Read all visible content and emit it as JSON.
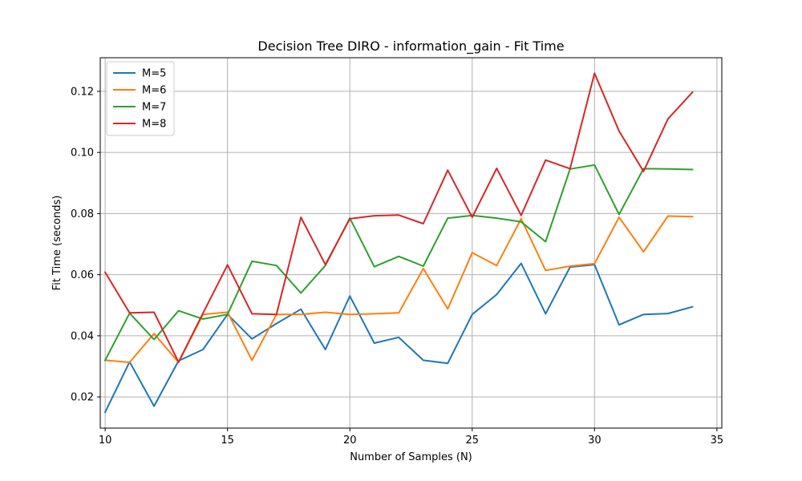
{
  "chart_data": {
    "type": "line",
    "title": "Decision Tree DIRO - information_gain - Fit Time",
    "xlabel": "Number of Samples (N)",
    "ylabel": "Fit Time (seconds)",
    "xlim": [
      9.8,
      35.2
    ],
    "ylim": [
      0.0098,
      0.131
    ],
    "xticks": [
      10,
      15,
      20,
      25,
      30,
      35
    ],
    "yticks": [
      0.02,
      0.04,
      0.06,
      0.08,
      0.1,
      0.12
    ],
    "ytick_labels": [
      "0.02",
      "0.04",
      "0.06",
      "0.08",
      "0.10",
      "0.12"
    ],
    "grid": true,
    "legend_position": "top-left",
    "x": [
      10,
      11,
      12,
      13,
      14,
      15,
      16,
      17,
      18,
      19,
      20,
      21,
      22,
      23,
      24,
      25,
      26,
      27,
      28,
      29,
      30,
      31,
      32,
      33,
      34
    ],
    "series": [
      {
        "name": "M=5",
        "color": "#1f77b4",
        "values": [
          0.015,
          0.0315,
          0.017,
          0.0318,
          0.0355,
          0.047,
          0.039,
          0.044,
          0.0487,
          0.0355,
          0.053,
          0.0376,
          0.0395,
          0.032,
          0.031,
          0.047,
          0.0535,
          0.0637,
          0.0472,
          0.0625,
          0.0633,
          0.0436,
          0.047,
          0.0473,
          0.0495
        ]
      },
      {
        "name": "M=6",
        "color": "#ff7f0e",
        "values": [
          0.032,
          0.0313,
          0.0407,
          0.0313,
          0.047,
          0.0477,
          0.032,
          0.047,
          0.047,
          0.0477,
          0.047,
          0.0472,
          0.0475,
          0.062,
          0.0488,
          0.0672,
          0.063,
          0.0783,
          0.0614,
          0.0628,
          0.0636,
          0.0788,
          0.0675,
          0.0792,
          0.079
        ]
      },
      {
        "name": "M=7",
        "color": "#2ca02c",
        "values": [
          0.032,
          0.0474,
          0.0388,
          0.0482,
          0.0455,
          0.047,
          0.0644,
          0.063,
          0.054,
          0.063,
          0.0785,
          0.0626,
          0.066,
          0.0628,
          0.0785,
          0.0794,
          0.0785,
          0.0773,
          0.0708,
          0.0946,
          0.0959,
          0.0797,
          0.0947,
          0.0946,
          0.0944
        ]
      },
      {
        "name": "M=8",
        "color": "#d62728",
        "values": [
          0.0608,
          0.0475,
          0.0477,
          0.0314,
          0.0474,
          0.0632,
          0.0472,
          0.047,
          0.0788,
          0.0633,
          0.0783,
          0.0793,
          0.0795,
          0.0767,
          0.0942,
          0.0788,
          0.0948,
          0.0794,
          0.0975,
          0.0947,
          0.1259,
          0.107,
          0.0938,
          0.111,
          0.1197
        ]
      }
    ]
  }
}
